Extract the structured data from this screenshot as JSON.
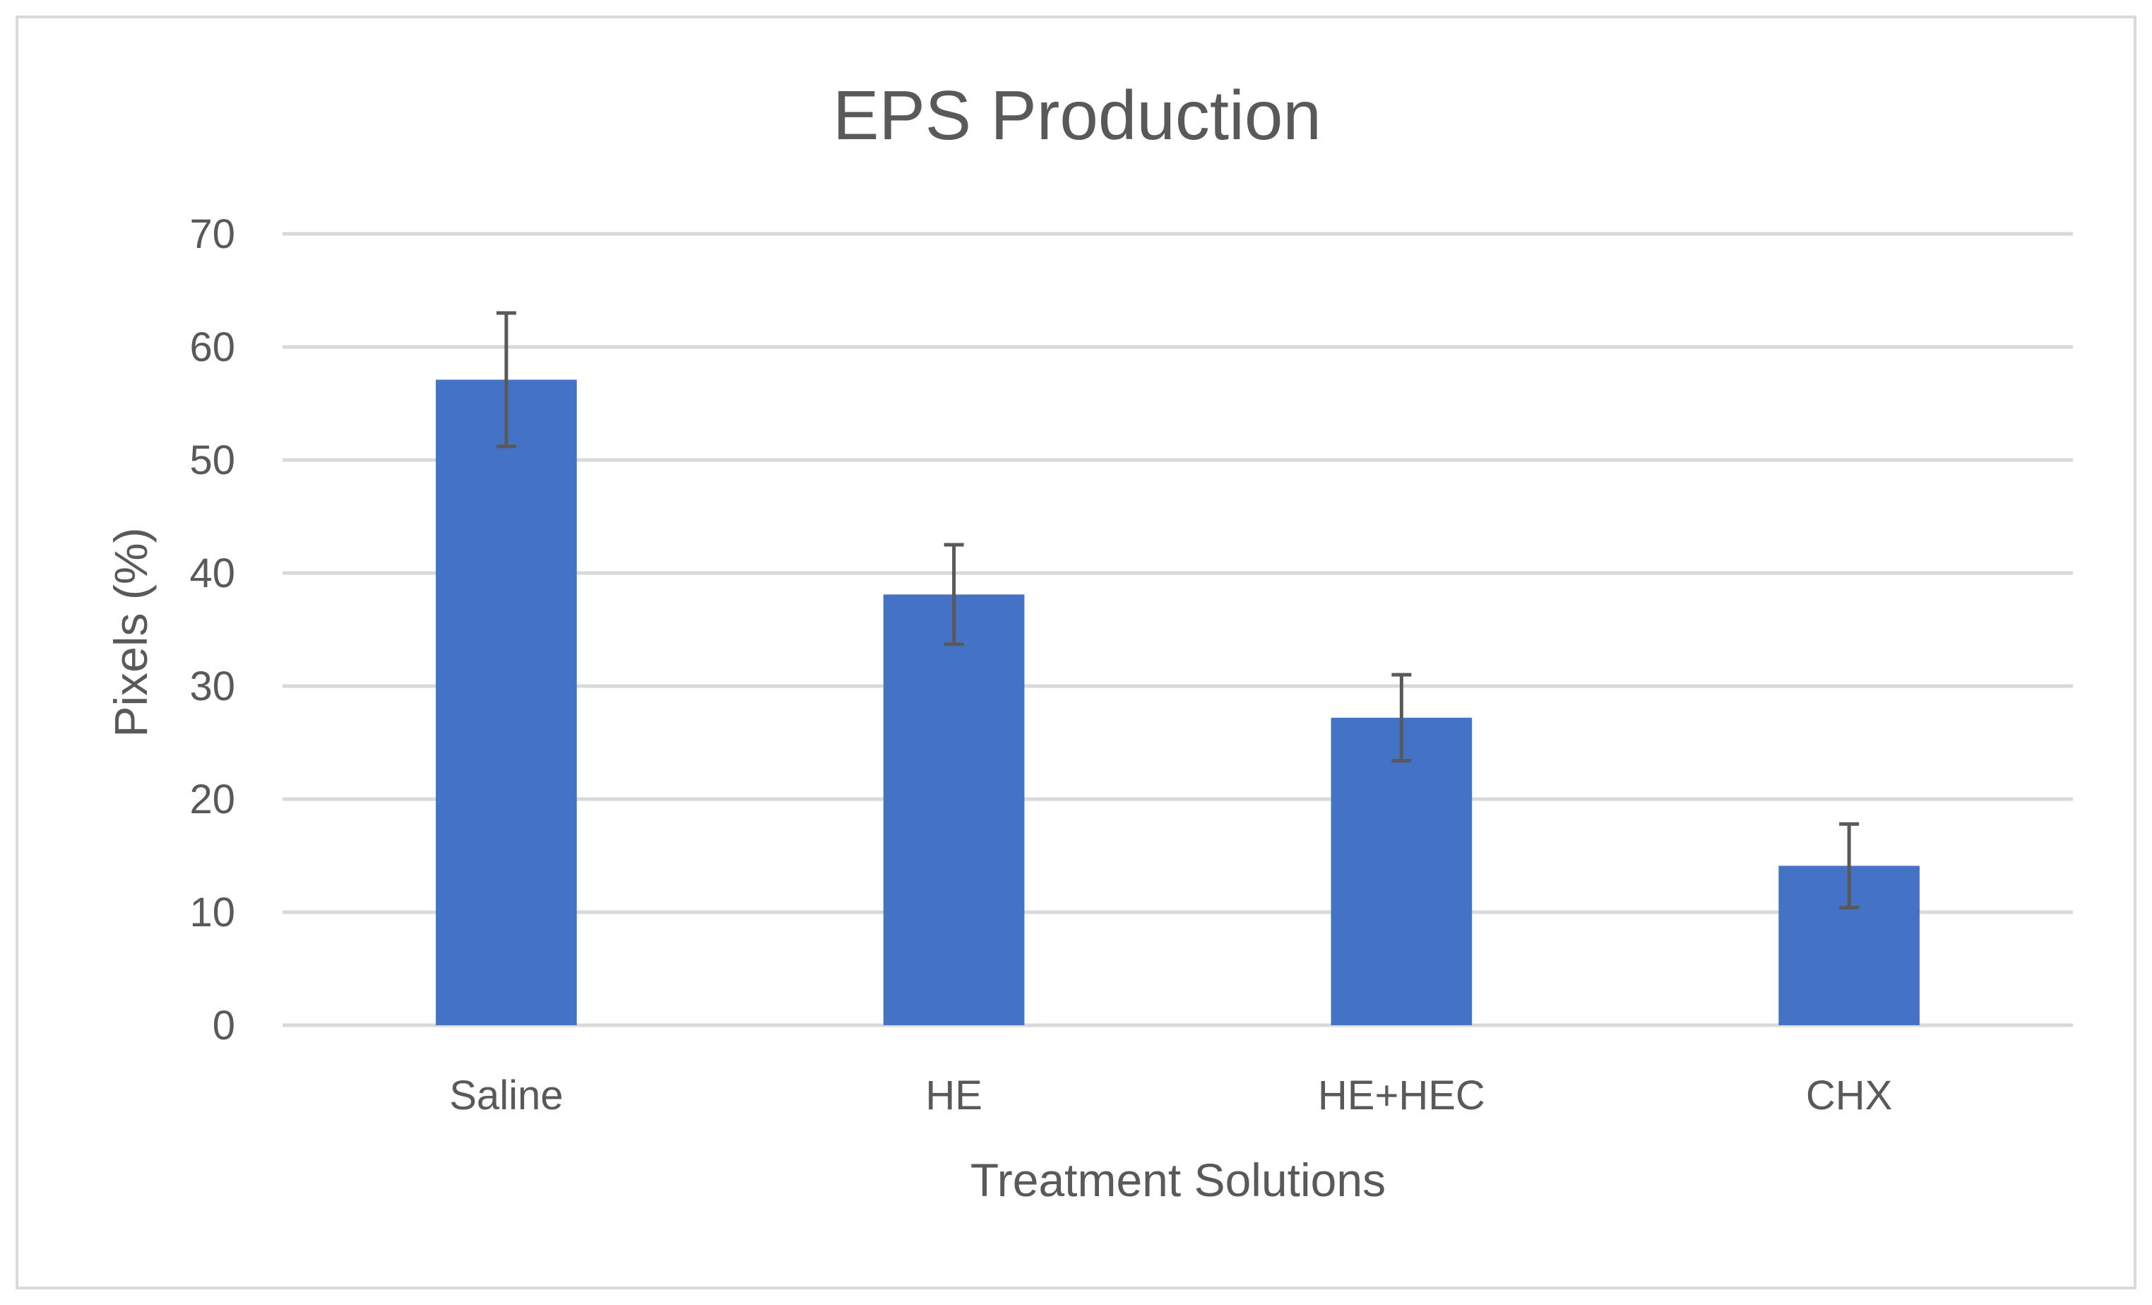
{
  "chart_data": {
    "type": "bar",
    "title": "EPS Production",
    "xlabel": "Treatment Solutions",
    "ylabel": "Pixels (%)",
    "categories": [
      "Saline",
      "HE",
      "HE+HEC",
      "CHX"
    ],
    "series": [
      {
        "values": [
          57.1,
          38.1,
          27.2,
          14.1
        ],
        "error": [
          5.9,
          4.4,
          3.8,
          3.7
        ],
        "color": "#4472c4"
      }
    ],
    "ylim": [
      0,
      70
    ],
    "yticks": [
      "0",
      "10",
      "20",
      "30",
      "40",
      "50",
      "60",
      "70"
    ],
    "grid": true,
    "legend": "none",
    "colors": {
      "gridline": "#d9d9d9",
      "errorbar": "#595959",
      "text": "#595959"
    }
  }
}
